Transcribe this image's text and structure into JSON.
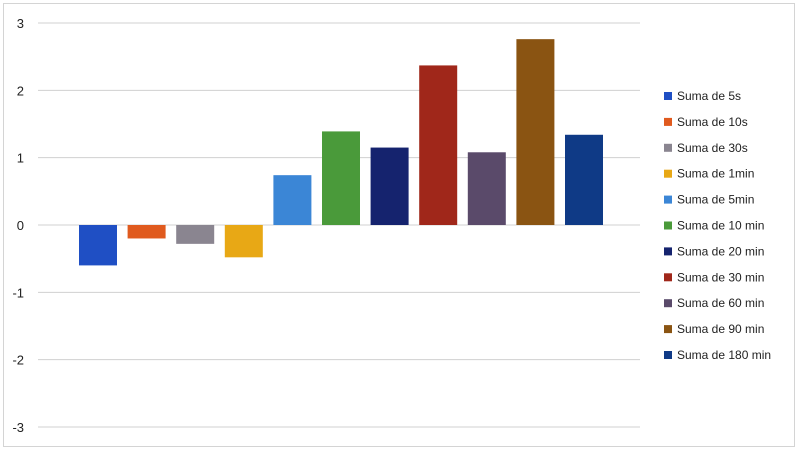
{
  "chart_data": {
    "type": "bar",
    "categories": [
      "Suma de 5s",
      "Suma de 10s",
      "Suma de 30s",
      "Suma de 1min",
      "Suma de 5min",
      "Suma de 10 min",
      "Suma de 20 min",
      "Suma de 30 min",
      "Suma de 60 min",
      "Suma de 90 min",
      "Suma de 180 min"
    ],
    "values": [
      -0.6,
      -0.2,
      -0.28,
      -0.48,
      0.74,
      1.39,
      1.15,
      2.37,
      1.08,
      2.76,
      1.34
    ],
    "colors": [
      "#1f4fc4",
      "#e05a1e",
      "#8a8590",
      "#e8a815",
      "#3b86d6",
      "#4a9a3a",
      "#15236e",
      "#a0271a",
      "#5a4a6a",
      "#8a5412",
      "#0f3a86"
    ],
    "title": "",
    "xlabel": "",
    "ylabel": "",
    "ylim": [
      -3,
      3
    ],
    "yticks": [
      "-3",
      "-2",
      "-1",
      "0",
      "1",
      "2",
      "3"
    ],
    "grid": true,
    "legend_position": "right"
  }
}
